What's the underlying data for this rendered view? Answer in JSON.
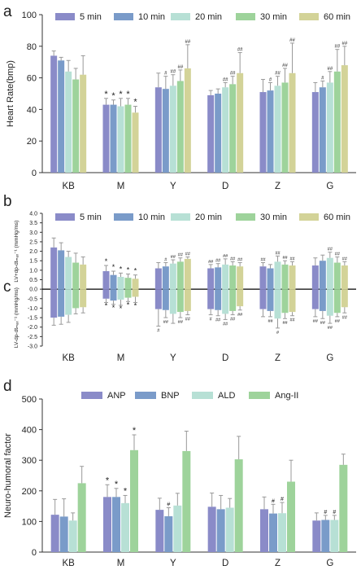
{
  "panel_labels": [
    "a",
    "b",
    "c",
    "d"
  ],
  "significance_symbols": {
    "vs_kb": "*",
    "vs_m": "##"
  },
  "colors": {
    "5 min": "#8a8bc8",
    "10 min": "#7a9bc9",
    "20 min": "#b7e0d5",
    "30 min": "#9ed39b",
    "60 min": "#d3d398",
    "ANP": "#8a8bc8",
    "BNP": "#7a9bc9",
    "ALD": "#b7e0d5",
    "Ang-II": "#9ed39b",
    "axis": "#333333",
    "error_bar": "#999999"
  },
  "chart_data": [
    {
      "id": "a",
      "type": "bar",
      "ylabel": "Heart Rate(bmp)",
      "ylim": [
        0,
        100
      ],
      "yticks": [
        0,
        20,
        40,
        60,
        80,
        100
      ],
      "categories": [
        "KB",
        "M",
        "Y",
        "D",
        "Z",
        "G"
      ],
      "legend_position": "top",
      "series": [
        {
          "name": "5 min",
          "values": [
            74,
            43,
            54,
            49,
            51,
            51
          ],
          "err": [
            3,
            4,
            9,
            3,
            8,
            6
          ]
        },
        {
          "name": "10 min",
          "values": [
            71,
            43,
            53,
            50,
            52,
            54
          ],
          "err": [
            2,
            3,
            8,
            3,
            5,
            4
          ]
        },
        {
          "name": "20 min",
          "values": [
            64,
            42,
            55,
            54,
            55,
            57
          ],
          "err": [
            7,
            5,
            7,
            3,
            6,
            7
          ]
        },
        {
          "name": "30 min",
          "values": [
            59,
            43,
            58,
            56,
            57,
            64
          ],
          "err": [
            7,
            4,
            7,
            5,
            9,
            14
          ]
        },
        {
          "name": "60 min",
          "values": [
            62,
            38,
            66,
            63,
            63,
            68
          ],
          "err": [
            12,
            4,
            15,
            13,
            19,
            12
          ]
        }
      ],
      "marks": [
        {
          "series": 0,
          "category": 1,
          "symbol": "*"
        },
        {
          "series": 1,
          "category": 1,
          "symbol": "*"
        },
        {
          "series": 2,
          "category": 1,
          "symbol": "*"
        },
        {
          "series": 3,
          "category": 1,
          "symbol": "*"
        },
        {
          "series": 4,
          "category": 1,
          "symbol": "*"
        },
        {
          "series": 1,
          "category": 2,
          "symbol": "#"
        },
        {
          "series": 2,
          "category": 2,
          "symbol": "##"
        },
        {
          "series": 3,
          "category": 2,
          "symbol": "##"
        },
        {
          "series": 4,
          "category": 2,
          "symbol": "##"
        },
        {
          "series": 2,
          "category": 3,
          "symbol": "##"
        },
        {
          "series": 3,
          "category": 3,
          "symbol": "##"
        },
        {
          "series": 4,
          "category": 3,
          "symbol": "##"
        },
        {
          "series": 1,
          "category": 4,
          "symbol": "#"
        },
        {
          "series": 2,
          "category": 4,
          "symbol": "##"
        },
        {
          "series": 3,
          "category": 4,
          "symbol": "##"
        },
        {
          "series": 4,
          "category": 4,
          "symbol": "##"
        },
        {
          "series": 1,
          "category": 5,
          "symbol": "#"
        },
        {
          "series": 2,
          "category": 5,
          "symbol": "##"
        },
        {
          "series": 3,
          "category": 5,
          "symbol": "##"
        },
        {
          "series": 4,
          "category": 5,
          "symbol": "##"
        }
      ]
    },
    {
      "id": "bc",
      "type": "bar",
      "ylabel_top": "LV+dp-dtₘₐₓ⁻¹ (mmHg/ms)",
      "ylabel_bottom": "LV-dp-dtₘₐₓ⁻¹ (mmHg/ms)",
      "ylim": [
        -3,
        4
      ],
      "yticks": [
        "4.0",
        "3.5",
        "3.0",
        "2.5",
        "2.0",
        "1.5",
        "1.0",
        "0.5",
        "0.0",
        "-0.5",
        "-1.0",
        "-1.5",
        "-2.0",
        "-2.5",
        "-3.0"
      ],
      "categories": [
        "KB",
        "M",
        "Y",
        "D",
        "Z",
        "G"
      ],
      "legend_position": "top",
      "series": [
        {
          "name": "5 min",
          "positive": [
            2.2,
            0.95,
            1.1,
            1.1,
            1.2,
            1.25
          ],
          "pos_err": [
            0.5,
            0.3,
            0.3,
            0.2,
            0.2,
            0.4
          ],
          "negative": [
            -1.5,
            -0.5,
            -1.05,
            -1.05,
            -1.05,
            -1.05
          ],
          "neg_err": [
            0.4,
            0.2,
            0.9,
            0.3,
            0.4,
            0.4
          ]
        },
        {
          "name": "10 min",
          "positive": [
            2.05,
            0.75,
            1.2,
            1.15,
            1.1,
            1.5
          ],
          "pos_err": [
            0.4,
            0.2,
            0.2,
            0.2,
            0.2,
            0.3
          ],
          "negative": [
            -1.45,
            -0.6,
            -1.1,
            -1.1,
            -1.15,
            -1.15
          ],
          "neg_err": [
            0.4,
            0.2,
            0.4,
            0.3,
            0.3,
            0.4
          ]
        },
        {
          "name": "20 min",
          "positive": [
            1.7,
            0.65,
            1.35,
            1.3,
            1.45,
            1.65
          ],
          "pos_err": [
            0.3,
            0.2,
            0.2,
            0.3,
            0.3,
            0.3
          ],
          "negative": [
            -1.35,
            -0.55,
            -1.3,
            -1.3,
            -1.55,
            -1.4
          ],
          "neg_err": [
            0.4,
            0.3,
            0.5,
            0.3,
            0.5,
            0.4
          ]
        },
        {
          "name": "30 min",
          "positive": [
            1.4,
            0.6,
            1.45,
            1.25,
            1.3,
            1.4
          ],
          "pos_err": [
            0.5,
            0.2,
            0.2,
            0.2,
            0.2,
            0.3
          ],
          "negative": [
            -1.0,
            -0.45,
            -1.2,
            -1.15,
            -1.25,
            -1.25
          ],
          "neg_err": [
            0.3,
            0.2,
            0.3,
            0.2,
            0.3,
            0.2
          ]
        },
        {
          "name": "60 min",
          "positive": [
            1.3,
            0.55,
            1.6,
            1.2,
            1.25,
            1.25
          ],
          "pos_err": [
            0.4,
            0.2,
            0.1,
            0.2,
            0.2,
            0.2
          ],
          "negative": [
            -0.95,
            -0.4,
            -1.15,
            -0.9,
            -1.2,
            -0.95
          ],
          "neg_err": [
            0.3,
            0.3,
            0.2,
            0.2,
            0.2,
            0.3
          ]
        }
      ],
      "marks_positive": [
        {
          "series": 0,
          "category": 1,
          "symbol": "*"
        },
        {
          "series": 1,
          "category": 1,
          "symbol": "*"
        },
        {
          "series": 2,
          "category": 1,
          "symbol": "*"
        },
        {
          "series": 3,
          "category": 1,
          "symbol": "*"
        },
        {
          "series": 4,
          "category": 1,
          "symbol": "*"
        },
        {
          "series": 1,
          "category": 2,
          "symbol": "#"
        },
        {
          "series": 2,
          "category": 2,
          "symbol": "##"
        },
        {
          "series": 3,
          "category": 2,
          "symbol": "##"
        },
        {
          "series": 4,
          "category": 2,
          "symbol": "##"
        },
        {
          "series": 0,
          "category": 3,
          "symbol": "##"
        },
        {
          "series": 1,
          "category": 3,
          "symbol": "##"
        },
        {
          "series": 2,
          "category": 3,
          "symbol": "##"
        },
        {
          "series": 3,
          "category": 3,
          "symbol": "##"
        },
        {
          "series": 4,
          "category": 3,
          "symbol": "##"
        },
        {
          "series": 0,
          "category": 4,
          "symbol": "##"
        },
        {
          "series": 2,
          "category": 4,
          "symbol": "##"
        },
        {
          "series": 3,
          "category": 4,
          "symbol": "##"
        },
        {
          "series": 4,
          "category": 4,
          "symbol": "##"
        },
        {
          "series": 2,
          "category": 5,
          "symbol": "##"
        },
        {
          "series": 3,
          "category": 5,
          "symbol": "##"
        },
        {
          "series": 4,
          "category": 5,
          "symbol": "##"
        }
      ],
      "marks_negative": [
        {
          "series": 0,
          "category": 1,
          "symbol": "*"
        },
        {
          "series": 1,
          "category": 1,
          "symbol": "*"
        },
        {
          "series": 2,
          "category": 1,
          "symbol": "*"
        },
        {
          "series": 3,
          "category": 1,
          "symbol": "*"
        },
        {
          "series": 4,
          "category": 1,
          "symbol": "*"
        },
        {
          "series": 0,
          "category": 2,
          "symbol": "#"
        },
        {
          "series": 1,
          "category": 2,
          "symbol": "##"
        },
        {
          "series": 3,
          "category": 2,
          "symbol": "##"
        },
        {
          "series": 4,
          "category": 2,
          "symbol": "##"
        },
        {
          "series": 0,
          "category": 3,
          "symbol": "#"
        },
        {
          "series": 1,
          "category": 3,
          "symbol": "##"
        },
        {
          "series": 2,
          "category": 3,
          "symbol": "##"
        },
        {
          "series": 3,
          "category": 3,
          "symbol": "##"
        },
        {
          "series": 4,
          "category": 3,
          "symbol": "##"
        },
        {
          "series": 1,
          "category": 4,
          "symbol": "##"
        },
        {
          "series": 2,
          "category": 4,
          "symbol": "#"
        },
        {
          "series": 3,
          "category": 4,
          "symbol": "##"
        },
        {
          "series": 4,
          "category": 4,
          "symbol": "##"
        },
        {
          "series": 0,
          "category": 5,
          "symbol": "##"
        },
        {
          "series": 1,
          "category": 5,
          "symbol": "##"
        },
        {
          "series": 2,
          "category": 5,
          "symbol": "##"
        },
        {
          "series": 3,
          "category": 5,
          "symbol": "##"
        },
        {
          "series": 4,
          "category": 5,
          "symbol": "##"
        }
      ]
    },
    {
      "id": "d",
      "type": "bar",
      "ylabel": "Neuro-humoral factor",
      "ylim": [
        0,
        500
      ],
      "yticks": [
        0,
        100,
        200,
        300,
        400,
        500
      ],
      "categories": [
        "KB",
        "M",
        "Y",
        "D",
        "Z",
        "G"
      ],
      "legend_position": "top",
      "series": [
        {
          "name": "ANP",
          "values": [
            122,
            180,
            138,
            148,
            140,
            103
          ],
          "err": [
            50,
            40,
            38,
            45,
            40,
            25
          ]
        },
        {
          "name": "BNP",
          "values": [
            116,
            180,
            117,
            140,
            126,
            105
          ],
          "err": [
            58,
            28,
            28,
            45,
            30,
            15
          ]
        },
        {
          "name": "ALD",
          "values": [
            103,
            160,
            152,
            145,
            127,
            105
          ],
          "err": [
            25,
            25,
            40,
            30,
            35,
            15
          ]
        },
        {
          "name": "Ang-II",
          "values": [
            225,
            333,
            330,
            303,
            230,
            285
          ],
          "err": [
            55,
            50,
            65,
            75,
            70,
            35
          ]
        }
      ],
      "marks": [
        {
          "series": 0,
          "category": 1,
          "symbol": "*"
        },
        {
          "series": 1,
          "category": 1,
          "symbol": "*"
        },
        {
          "series": 2,
          "category": 1,
          "symbol": "*"
        },
        {
          "series": 3,
          "category": 1,
          "symbol": "*"
        },
        {
          "series": 1,
          "category": 2,
          "symbol": "#"
        },
        {
          "series": 1,
          "category": 4,
          "symbol": "#"
        },
        {
          "series": 2,
          "category": 4,
          "symbol": "#"
        },
        {
          "series": 1,
          "category": 5,
          "symbol": "#"
        },
        {
          "series": 2,
          "category": 5,
          "symbol": "#"
        }
      ]
    }
  ]
}
